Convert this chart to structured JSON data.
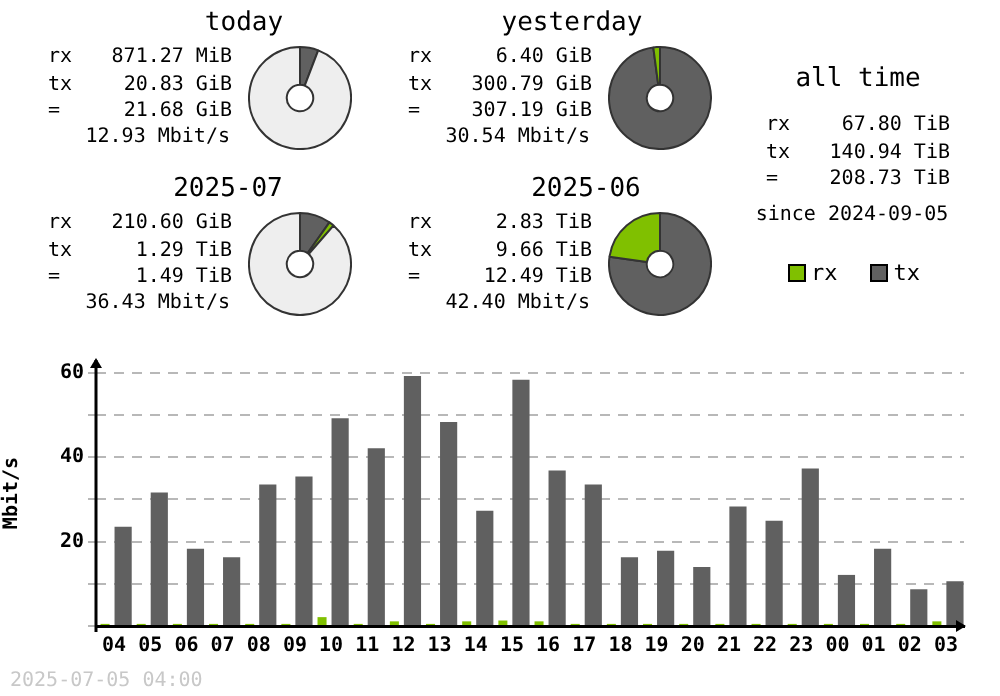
{
  "chart_data": [
    {
      "type": "donut",
      "title": "today",
      "categories": [
        null,
        null,
        null
      ],
      "values": [
        5.8,
        null,
        94
      ],
      "colors": [
        "#606060",
        "#80c000",
        "#eeeeee"
      ],
      "annotations": [
        "rx 871.27 MiB",
        "tx 20.83 GiB",
        "= 21.68 GiB"
      ],
      "subtitle": "12.93 Mbit/s"
    },
    {
      "type": "donut",
      "title": "yesterday",
      "categories": [
        null,
        null
      ],
      "values": [
        97.9,
        2.1
      ],
      "colors": [
        "#606060",
        "#80c000"
      ],
      "annotations": [
        "rx 6.40 GiB",
        "tx 300.79 GiB",
        "= 307.19 GiB"
      ],
      "subtitle": "30.54 Mbit/s"
    },
    {
      "type": "other",
      "title": "all time",
      "annotations": [
        "rx 67.80 TiB",
        "tx 140.94 TiB",
        "= 208.73 TiB"
      ],
      "subtitle": "since 2024-09-05"
    },
    {
      "type": "donut",
      "title": "2025-07",
      "categories": [
        null,
        null,
        null
      ],
      "values": [
        9.8,
        1.6,
        88.6
      ],
      "colors": [
        "#606060",
        "#80c000",
        "#eeeeee"
      ],
      "annotations": [
        "rx 210.60 GiB",
        "tx 1.29 TiB",
        "= 1.49 TiB"
      ],
      "subtitle": "36.43 Mbit/s"
    },
    {
      "type": "donut",
      "title": "2025-06",
      "categories": [
        null,
        null
      ],
      "values": [
        77.3,
        22.7
      ],
      "colors": [
        "#606060",
        "#80c000"
      ],
      "annotations": [
        "rx 2.83 TiB",
        "tx 9.66 TiB",
        "= 12.49 TiB"
      ],
      "subtitle": "42.40 Mbit/s"
    },
    {
      "type": "bar",
      "categories": [
        "04",
        "05",
        "06",
        "07",
        "08",
        "09",
        "10",
        "11",
        "12",
        "13",
        "14",
        "15",
        "16",
        "17",
        "18",
        "19",
        "20",
        "21",
        "22",
        "23",
        "00",
        "01",
        "02",
        "03"
      ],
      "series": [
        {
          "name": "rx",
          "color": "#80c000",
          "values": [
            0.5,
            0.5,
            0.5,
            0.5,
            0.5,
            0.5,
            2.1,
            0.5,
            1.1,
            0.5,
            1.1,
            1.3,
            1.1,
            0.5,
            0.5,
            0.5,
            0.5,
            0.5,
            0.5,
            0.5,
            0.5,
            0.5,
            0.5,
            1.1
          ]
        },
        {
          "name": "tx",
          "color": "#606060",
          "values": [
            23.5,
            31.6,
            18.3,
            16.3,
            33.5,
            35.4,
            49.2,
            42.1,
            59.2,
            48.3,
            27.3,
            58.3,
            36.8,
            33.5,
            16.3,
            17.8,
            14.0,
            28.3,
            24.9,
            37.3,
            12.1,
            18.3,
            8.7,
            10.6
          ]
        }
      ],
      "ylabel": "Mbit/s",
      "ylim": [
        0,
        63
      ],
      "yticks": [
        {
          "value": 0,
          "label": null
        },
        {
          "value": 10,
          "label": null
        },
        20,
        {
          "value": 30,
          "label": null
        },
        40,
        {
          "value": 50,
          "label": null
        },
        60
      ],
      "grid": "y",
      "legend": "top right",
      "annotations": [
        "2025-07-05 04:00"
      ]
    }
  ]
}
